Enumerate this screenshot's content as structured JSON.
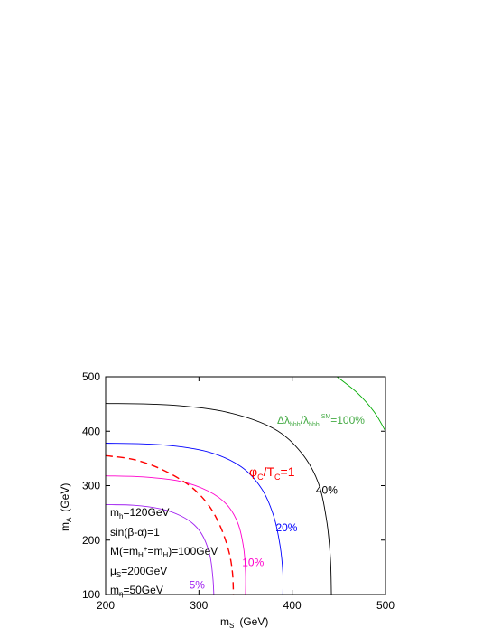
{
  "chart_data": {
    "type": "line",
    "title": "",
    "xlabel": {
      "main": "m",
      "sub": "S",
      "unit": "(GeV)"
    },
    "ylabel": {
      "main": "m",
      "sub": "A",
      "unit": "(GeV)"
    },
    "xlim": [
      200,
      500
    ],
    "ylim": [
      100,
      500
    ],
    "xticks": [
      "200",
      "300",
      "400",
      "500"
    ],
    "yticks": [
      "100",
      "200",
      "300",
      "400",
      "500"
    ],
    "grid": false,
    "series": [
      {
        "name": "5%",
        "color": "#a020f0",
        "style": "solid",
        "x": [
          200,
          230,
          260,
          280,
          295,
          305,
          312,
          315,
          316
        ],
        "y": [
          265,
          264,
          257,
          245,
          228,
          205,
          170,
          130,
          100
        ]
      },
      {
        "name": "10%",
        "color": "#ff00cc",
        "style": "solid",
        "x": [
          200,
          240,
          280,
          310,
          330,
          342,
          348,
          350,
          350
        ],
        "y": [
          318,
          316,
          308,
          290,
          265,
          230,
          185,
          140,
          100
        ]
      },
      {
        "name": "φC/TC=1",
        "color": "#ff0000",
        "style": "dashed",
        "x": [
          200,
          230,
          260,
          290,
          310,
          323,
          332,
          336,
          337
        ],
        "y": [
          355,
          348,
          330,
          300,
          265,
          225,
          180,
          140,
          100
        ]
      },
      {
        "name": "20%",
        "color": "#0000ff",
        "style": "solid",
        "x": [
          200,
          260,
          310,
          345,
          367,
          380,
          387,
          390,
          390
        ],
        "y": [
          378,
          375,
          362,
          335,
          295,
          245,
          190,
          140,
          100
        ]
      },
      {
        "name": "40%",
        "color": "#000000",
        "style": "solid",
        "x": [
          200,
          270,
          330,
          380,
          410,
          428,
          437,
          441,
          442
        ],
        "y": [
          451,
          448,
          435,
          405,
          360,
          305,
          235,
          165,
          100
        ]
      },
      {
        "name": "100%",
        "color": "#00aa00",
        "style": "solid",
        "x": [
          448,
          470,
          488,
          500
        ],
        "y": [
          500,
          470,
          435,
          400
        ]
      }
    ],
    "labels": [
      {
        "text": "5%",
        "x": 298,
        "y": 111,
        "color": "#a020f0"
      },
      {
        "text": "10%",
        "x": 358,
        "y": 152,
        "color": "#ff00cc"
      },
      {
        "text": "20%",
        "x": 394,
        "y": 216,
        "color": "#0000ff"
      },
      {
        "text": "40%",
        "x": 437,
        "y": 285,
        "color": "#000000"
      }
    ],
    "phi_label": {
      "main1": "φ",
      "sub1": "C",
      "main2": "/T",
      "sub2": "C",
      "tail": "=1",
      "x": 276,
      "y": 321,
      "color": "#ff0000"
    },
    "green_label": {
      "color": "#44aa44",
      "x": 387,
      "y": 410,
      "p1": "Δλ",
      "s1": "hhh",
      "p2": "/λ",
      "s2": "hhh",
      "sup": "SM",
      "p3": "=100%"
    },
    "params": [
      {
        "pre": "m",
        "sub": "h",
        "post": "=120GeV"
      },
      {
        "pre": "sin(β-α)=1",
        "sub": "",
        "post": ""
      },
      {
        "pre": "M(=m",
        "sub": "H",
        "mid": "+",
        "sub2": "=m",
        "sub3": "H",
        "post": ")=100GeV"
      },
      {
        "pre": "μ",
        "sub": "S",
        "post": "=200GeV"
      },
      {
        "pre": "m",
        "sub": "η",
        "post": "=50GeV"
      }
    ]
  }
}
